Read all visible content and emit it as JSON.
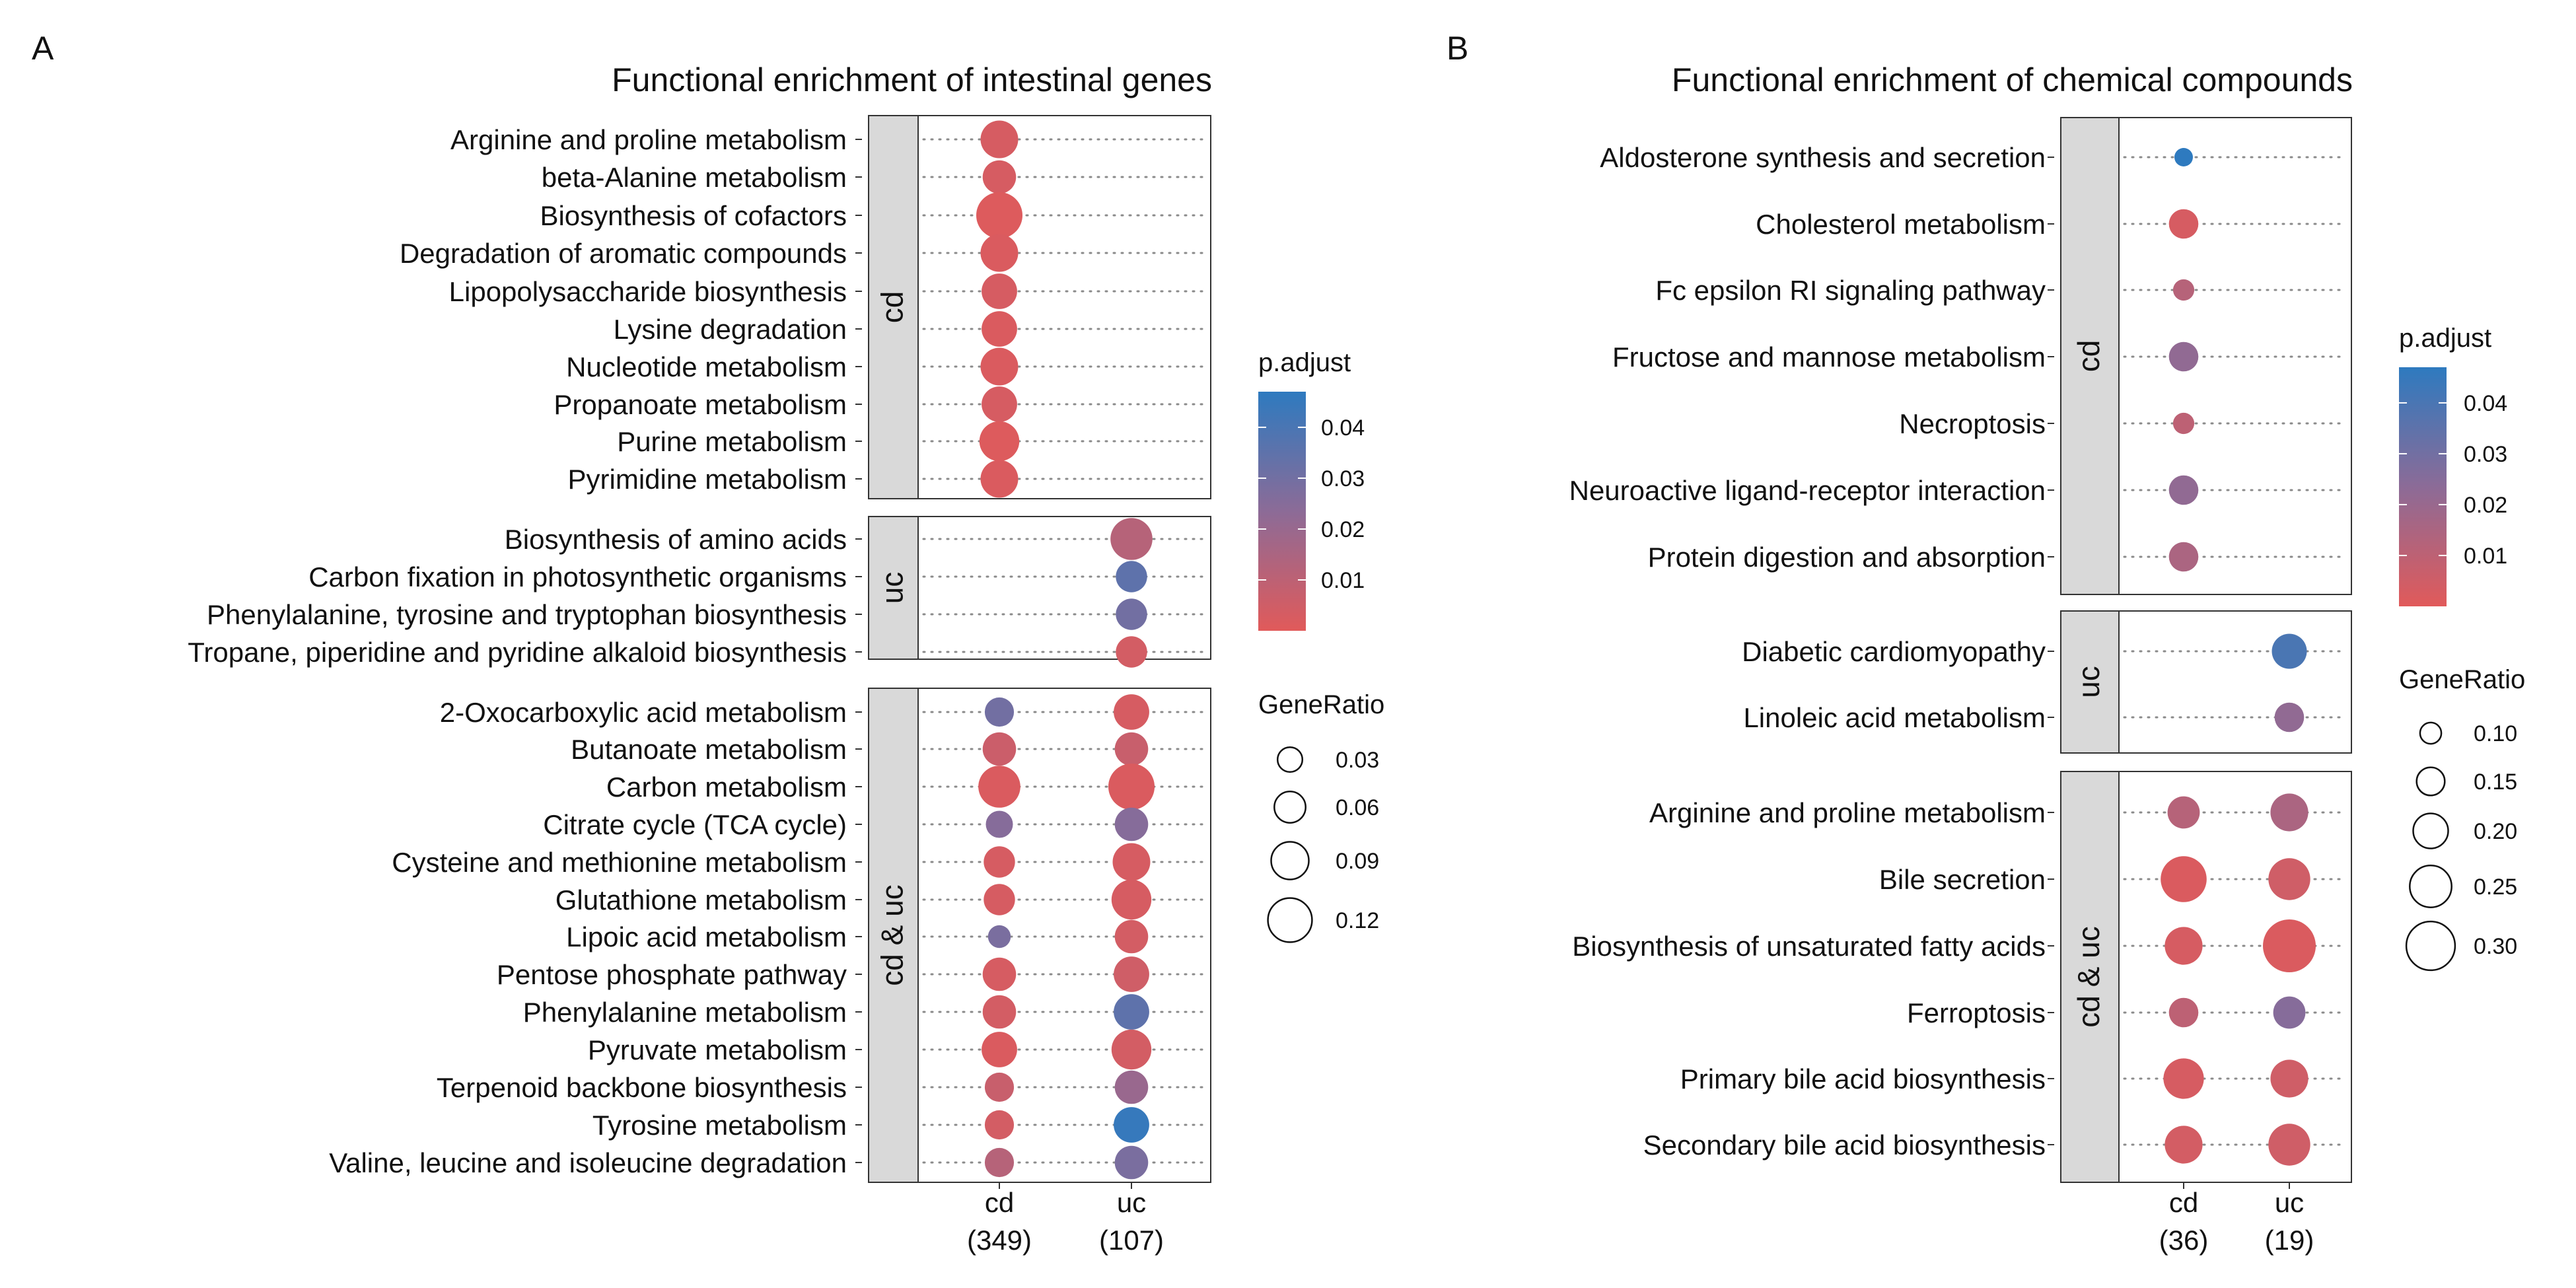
{
  "chart_data": [
    {
      "type": "scatter",
      "panel_label": "A",
      "title": "Functional enrichment of intestinal genes",
      "x_categories": [
        {
          "name": "cd",
          "count": "(349)"
        },
        {
          "name": "uc",
          "count": "(107)"
        }
      ],
      "facets": [
        {
          "label": "cd",
          "rows": [
            {
              "label": "Arginine and proline metabolism",
              "points": [
                {
                  "x": "cd",
                  "gene_ratio": 0.09,
                  "p_adjust": 0.003
                }
              ]
            },
            {
              "label": "beta-Alanine metabolism",
              "points": [
                {
                  "x": "cd",
                  "gene_ratio": 0.07,
                  "p_adjust": 0.003
                }
              ]
            },
            {
              "label": "Biosynthesis of cofactors",
              "points": [
                {
                  "x": "cd",
                  "gene_ratio": 0.13,
                  "p_adjust": 0.001
                }
              ]
            },
            {
              "label": "Degradation of aromatic compounds",
              "points": [
                {
                  "x": "cd",
                  "gene_ratio": 0.09,
                  "p_adjust": 0.002
                }
              ]
            },
            {
              "label": "Lipopolysaccharide biosynthesis",
              "points": [
                {
                  "x": "cd",
                  "gene_ratio": 0.08,
                  "p_adjust": 0.003
                }
              ]
            },
            {
              "label": "Lysine degradation",
              "points": [
                {
                  "x": "cd",
                  "gene_ratio": 0.08,
                  "p_adjust": 0.002
                }
              ]
            },
            {
              "label": "Nucleotide metabolism",
              "points": [
                {
                  "x": "cd",
                  "gene_ratio": 0.09,
                  "p_adjust": 0.002
                }
              ]
            },
            {
              "label": "Propanoate metabolism",
              "points": [
                {
                  "x": "cd",
                  "gene_ratio": 0.08,
                  "p_adjust": 0.003
                }
              ]
            },
            {
              "label": "Purine metabolism",
              "points": [
                {
                  "x": "cd",
                  "gene_ratio": 0.1,
                  "p_adjust": 0.001
                }
              ]
            },
            {
              "label": "Pyrimidine metabolism",
              "points": [
                {
                  "x": "cd",
                  "gene_ratio": 0.09,
                  "p_adjust": 0.002
                }
              ]
            }
          ]
        },
        {
          "label": "uc",
          "rows": [
            {
              "label": "Biosynthesis of amino acids",
              "points": [
                {
                  "x": "uc",
                  "gene_ratio": 0.11,
                  "p_adjust": 0.012
                }
              ]
            },
            {
              "label": "Carbon fixation in photosynthetic organisms",
              "points": [
                {
                  "x": "uc",
                  "gene_ratio": 0.06,
                  "p_adjust": 0.035
                }
              ]
            },
            {
              "label": "Phenylalanine, tyrosine and tryptophan biosynthesis",
              "points": [
                {
                  "x": "uc",
                  "gene_ratio": 0.06,
                  "p_adjust": 0.03
                }
              ]
            },
            {
              "label": "Tropane, piperidine and pyridine alkaloid biosynthesis",
              "points": [
                {
                  "x": "uc",
                  "gene_ratio": 0.06,
                  "p_adjust": 0.004
                }
              ]
            }
          ]
        },
        {
          "label": "cd & uc",
          "rows": [
            {
              "label": "2-Oxocarboxylic acid metabolism",
              "points": [
                {
                  "x": "cd",
                  "gene_ratio": 0.05,
                  "p_adjust": 0.03
                },
                {
                  "x": "uc",
                  "gene_ratio": 0.08,
                  "p_adjust": 0.003
                }
              ]
            },
            {
              "label": "Butanoate metabolism",
              "points": [
                {
                  "x": "cd",
                  "gene_ratio": 0.07,
                  "p_adjust": 0.006
                },
                {
                  "x": "uc",
                  "gene_ratio": 0.07,
                  "p_adjust": 0.007
                }
              ]
            },
            {
              "label": "Carbon metabolism",
              "points": [
                {
                  "x": "cd",
                  "gene_ratio": 0.11,
                  "p_adjust": 0.002
                },
                {
                  "x": "uc",
                  "gene_ratio": 0.13,
                  "p_adjust": 0.002
                }
              ]
            },
            {
              "label": "Citrate cycle (TCA cycle)",
              "points": [
                {
                  "x": "cd",
                  "gene_ratio": 0.04,
                  "p_adjust": 0.025
                },
                {
                  "x": "uc",
                  "gene_ratio": 0.07,
                  "p_adjust": 0.025
                }
              ]
            },
            {
              "label": "Cysteine and methionine metabolism",
              "points": [
                {
                  "x": "cd",
                  "gene_ratio": 0.06,
                  "p_adjust": 0.003
                },
                {
                  "x": "uc",
                  "gene_ratio": 0.09,
                  "p_adjust": 0.003
                }
              ]
            },
            {
              "label": "Glutathione metabolism",
              "points": [
                {
                  "x": "cd",
                  "gene_ratio": 0.06,
                  "p_adjust": 0.003
                },
                {
                  "x": "uc",
                  "gene_ratio": 0.1,
                  "p_adjust": 0.003
                }
              ]
            },
            {
              "label": "Lipoic acid metabolism",
              "points": [
                {
                  "x": "cd",
                  "gene_ratio": 0.02,
                  "p_adjust": 0.028
                },
                {
                  "x": "uc",
                  "gene_ratio": 0.07,
                  "p_adjust": 0.004
                }
              ]
            },
            {
              "label": "Pentose phosphate pathway",
              "points": [
                {
                  "x": "cd",
                  "gene_ratio": 0.07,
                  "p_adjust": 0.003
                },
                {
                  "x": "uc",
                  "gene_ratio": 0.08,
                  "p_adjust": 0.005
                }
              ]
            },
            {
              "label": "Phenylalanine metabolism",
              "points": [
                {
                  "x": "cd",
                  "gene_ratio": 0.07,
                  "p_adjust": 0.004
                },
                {
                  "x": "uc",
                  "gene_ratio": 0.08,
                  "p_adjust": 0.035
                }
              ]
            },
            {
              "label": "Pyruvate metabolism",
              "points": [
                {
                  "x": "cd",
                  "gene_ratio": 0.08,
                  "p_adjust": 0.002
                },
                {
                  "x": "uc",
                  "gene_ratio": 0.1,
                  "p_adjust": 0.004
                }
              ]
            },
            {
              "label": "Terpenoid backbone biosynthesis",
              "points": [
                {
                  "x": "cd",
                  "gene_ratio": 0.05,
                  "p_adjust": 0.007
                },
                {
                  "x": "uc",
                  "gene_ratio": 0.07,
                  "p_adjust": 0.02
                }
              ]
            },
            {
              "label": "Tyrosine metabolism",
              "points": [
                {
                  "x": "cd",
                  "gene_ratio": 0.05,
                  "p_adjust": 0.004
                },
                {
                  "x": "uc",
                  "gene_ratio": 0.08,
                  "p_adjust": 0.045
                }
              ]
            },
            {
              "label": "Valine, leucine and isoleucine degradation",
              "points": [
                {
                  "x": "cd",
                  "gene_ratio": 0.05,
                  "p_adjust": 0.012
                },
                {
                  "x": "uc",
                  "gene_ratio": 0.07,
                  "p_adjust": 0.028
                }
              ]
            }
          ]
        }
      ],
      "legend_color": {
        "title": "p.adjust",
        "min": 0.0,
        "max": 0.047,
        "ticks": [
          "0.01",
          "0.02",
          "0.03",
          "0.04"
        ],
        "tick_values": [
          0.01,
          0.02,
          0.03,
          0.04
        ],
        "low_color": "#e15a5a",
        "mid_color": "#8c6b97",
        "high_color": "#2e7abf"
      },
      "legend_size": {
        "title": "GeneRatio",
        "ticks": [
          "0.03",
          "0.06",
          "0.09",
          "0.12"
        ],
        "tick_values": [
          0.03,
          0.06,
          0.09,
          0.12
        ],
        "range": [
          0.0,
          0.13
        ]
      }
    },
    {
      "type": "scatter",
      "panel_label": "B",
      "title": "Functional enrichment of chemical compounds",
      "x_categories": [
        {
          "name": "cd",
          "count": "(36)"
        },
        {
          "name": "uc",
          "count": "(19)"
        }
      ],
      "facets": [
        {
          "label": "cd",
          "rows": [
            {
              "label": "Aldosterone synthesis and secretion",
              "points": [
                {
                  "x": "cd",
                  "gene_ratio": 0.08,
                  "p_adjust": 0.048
                }
              ]
            },
            {
              "label": "Cholesterol metabolism",
              "points": [
                {
                  "x": "cd",
                  "gene_ratio": 0.16,
                  "p_adjust": 0.003
                }
              ]
            },
            {
              "label": "Fc epsilon RI signaling pathway",
              "points": [
                {
                  "x": "cd",
                  "gene_ratio": 0.1,
                  "p_adjust": 0.012
                }
              ]
            },
            {
              "label": "Fructose and mannose metabolism",
              "points": [
                {
                  "x": "cd",
                  "gene_ratio": 0.16,
                  "p_adjust": 0.022
                }
              ]
            },
            {
              "label": "Necroptosis",
              "points": [
                {
                  "x": "cd",
                  "gene_ratio": 0.1,
                  "p_adjust": 0.01
                }
              ]
            },
            {
              "label": "Neuroactive ligand-receptor interaction",
              "points": [
                {
                  "x": "cd",
                  "gene_ratio": 0.16,
                  "p_adjust": 0.022
                }
              ]
            },
            {
              "label": "Protein digestion and absorption",
              "points": [
                {
                  "x": "cd",
                  "gene_ratio": 0.16,
                  "p_adjust": 0.015
                }
              ]
            }
          ]
        },
        {
          "label": "uc",
          "rows": [
            {
              "label": "Diabetic cardiomyopathy",
              "points": [
                {
                  "x": "uc",
                  "gene_ratio": 0.2,
                  "p_adjust": 0.04
                }
              ]
            },
            {
              "label": "Linoleic acid metabolism",
              "points": [
                {
                  "x": "uc",
                  "gene_ratio": 0.16,
                  "p_adjust": 0.022
                }
              ]
            }
          ]
        },
        {
          "label": "cd & uc",
          "rows": [
            {
              "label": "Arginine and proline metabolism",
              "points": [
                {
                  "x": "cd",
                  "gene_ratio": 0.18,
                  "p_adjust": 0.012
                },
                {
                  "x": "uc",
                  "gene_ratio": 0.22,
                  "p_adjust": 0.015
                }
              ]
            },
            {
              "label": "Bile secretion",
              "points": [
                {
                  "x": "cd",
                  "gene_ratio": 0.28,
                  "p_adjust": 0.002
                },
                {
                  "x": "uc",
                  "gene_ratio": 0.25,
                  "p_adjust": 0.005
                }
              ]
            },
            {
              "label": "Biosynthesis of unsaturated fatty acids",
              "points": [
                {
                  "x": "cd",
                  "gene_ratio": 0.22,
                  "p_adjust": 0.003
                },
                {
                  "x": "uc",
                  "gene_ratio": 0.33,
                  "p_adjust": 0.002
                }
              ]
            },
            {
              "label": "Ferroptosis",
              "points": [
                {
                  "x": "cd",
                  "gene_ratio": 0.16,
                  "p_adjust": 0.01
                },
                {
                  "x": "uc",
                  "gene_ratio": 0.18,
                  "p_adjust": 0.025
                }
              ]
            },
            {
              "label": "Primary bile acid biosynthesis",
              "points": [
                {
                  "x": "cd",
                  "gene_ratio": 0.24,
                  "p_adjust": 0.003
                },
                {
                  "x": "uc",
                  "gene_ratio": 0.22,
                  "p_adjust": 0.005
                }
              ]
            },
            {
              "label": "Secondary bile acid biosynthesis",
              "points": [
                {
                  "x": "cd",
                  "gene_ratio": 0.22,
                  "p_adjust": 0.004
                },
                {
                  "x": "uc",
                  "gene_ratio": 0.25,
                  "p_adjust": 0.005
                }
              ]
            }
          ]
        }
      ],
      "legend_color": {
        "title": "p.adjust",
        "min": 0.0,
        "max": 0.047,
        "ticks": [
          "0.01",
          "0.02",
          "0.03",
          "0.04"
        ],
        "tick_values": [
          0.01,
          0.02,
          0.03,
          0.04
        ],
        "low_color": "#e15a5a",
        "mid_color": "#8c6b97",
        "high_color": "#2e7abf"
      },
      "legend_size": {
        "title": "GeneRatio",
        "ticks": [
          "0.10",
          "0.15",
          "0.20",
          "0.25",
          "0.30"
        ],
        "tick_values": [
          0.1,
          0.15,
          0.2,
          0.25,
          0.3
        ],
        "range": [
          0.08,
          0.33
        ]
      }
    }
  ]
}
